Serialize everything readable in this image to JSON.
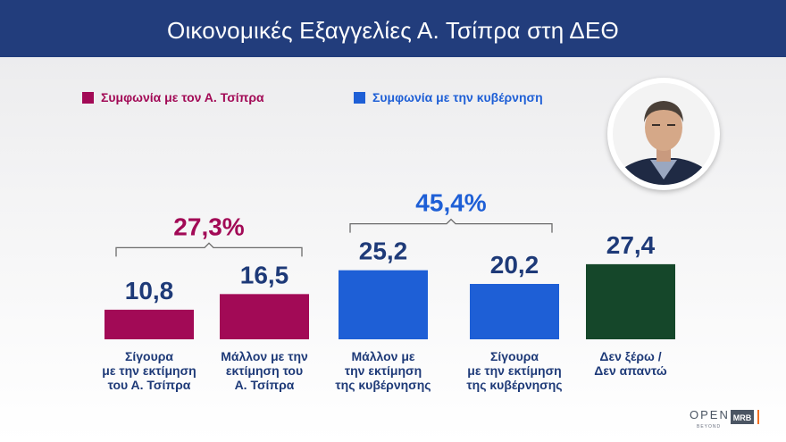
{
  "header": {
    "title": "Οικονομικές Εξαγγελίες Α. Τσίπρα στη ΔΕΘ"
  },
  "legend": [
    {
      "label": "Συμφωνία με τον Α. Τσίπρα",
      "color": "#a20a56"
    },
    {
      "label": "Συμφωνία με την κυβέρνηση",
      "color": "#1e5fd6"
    }
  ],
  "chart_data": {
    "type": "bar",
    "title": "Οικονομικές Εξαγγελίες Α. Τσίπρα στη ΔΕΘ",
    "categories": [
      "Σίγουρα με την εκτίμηση του Α. Τσίπρα",
      "Μάλλον με την εκτίμηση του Α. Τσίπρα",
      "Μάλλον με την εκτίμηση της κυβέρνησης",
      "Σίγουρα με την εκτίμηση της κυβέρνησης",
      "Δεν ξέρω / Δεν απαντώ"
    ],
    "category_lines": [
      [
        "Σίγουρα",
        "με την εκτίμηση",
        "του Α. Τσίπρα"
      ],
      [
        "Μάλλον με την",
        "εκτίμηση του",
        "Α. Τσίπρα"
      ],
      [
        "Μάλλον με",
        "την εκτίμηση",
        "της κυβέρνησης"
      ],
      [
        "Σίγουρα",
        "με την εκτίμηση",
        "της κυβέρνησης"
      ],
      [
        "Δεν ξέρω /",
        "Δεν απαντώ"
      ]
    ],
    "values": [
      10.8,
      16.5,
      25.2,
      20.2,
      27.4
    ],
    "value_labels": [
      "10,8",
      "16,5",
      "25,2",
      "20,2",
      "27,4"
    ],
    "bar_colors": [
      "#a20a56",
      "#a20a56",
      "#1e5fd6",
      "#1e5fd6",
      "#15472a"
    ],
    "groups": [
      {
        "label": "27,3%",
        "value": 27.3,
        "bars": [
          0,
          1
        ],
        "color": "#a20a56"
      },
      {
        "label": "45,4%",
        "value": 45.4,
        "bars": [
          2,
          3
        ],
        "color": "#1e5fd6"
      }
    ],
    "xlabel": "",
    "ylabel": "",
    "ylim": [
      0,
      30
    ],
    "grid": false
  },
  "colors": {
    "value_text": "#1e3a78",
    "header_bg": "#223d7c"
  },
  "branding": {
    "logo_word": "OPEN",
    "logo_sub": "BEYOND",
    "pollster": "MRB"
  }
}
